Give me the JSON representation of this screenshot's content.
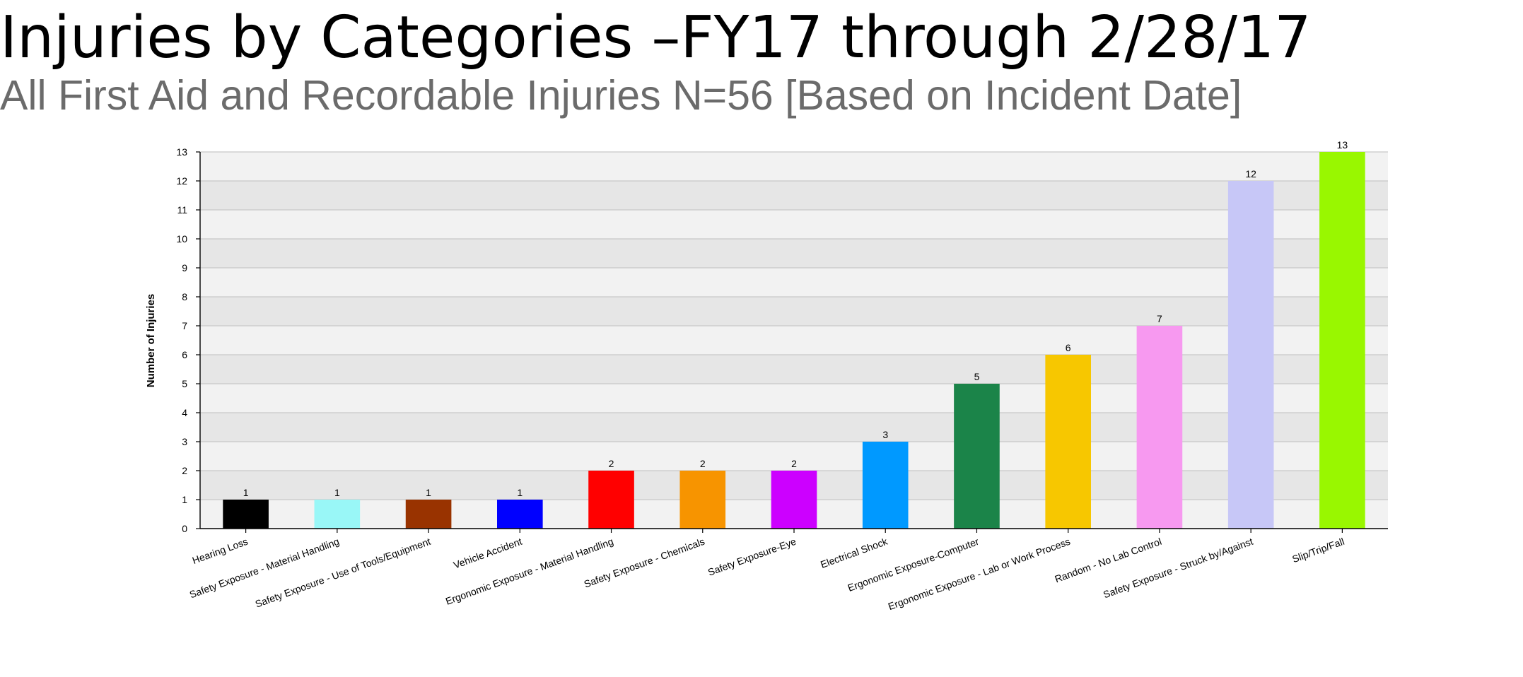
{
  "chart_data": {
    "type": "bar",
    "title": "Injuries by Categories –FY17 through 2/28/17",
    "subtitle": "All First Aid and Recordable Injuries N=56 [Based on Incident Date]",
    "xlabel": "",
    "ylabel": "Number of Injuries",
    "ylim": [
      0,
      13
    ],
    "yticks": [
      0,
      1,
      2,
      3,
      4,
      5,
      6,
      7,
      8,
      9,
      10,
      11,
      12,
      13
    ],
    "grid": true,
    "legend": "none",
    "categories": [
      "Hearing Loss",
      "Safety Exposure - Material Handling",
      "Safety Exposure - Use of Tools/Equipment",
      "Vehicle Accident",
      "Ergonomic Exposure - Material Handling",
      "Safety Exposure - Chemicals",
      "Safety Exposure-Eye",
      "Electrical Shock",
      "Ergonomic Exposure-Computer",
      "Ergonomic Exposure - Lab or Work Process",
      "Random - No Lab Control",
      "Safety Exposure - Struck by/Against",
      "Slip/Trip/Fall"
    ],
    "values": [
      1,
      1,
      1,
      1,
      2,
      2,
      2,
      3,
      5,
      6,
      7,
      12,
      13
    ],
    "colors": [
      "#000000",
      "#99f7f7",
      "#993300",
      "#0000ff",
      "#ff0000",
      "#f79400",
      "#cc00ff",
      "#0099ff",
      "#1b8449",
      "#f7c700",
      "#f799f0",
      "#c7c7f7",
      "#99f700"
    ],
    "band_colors": [
      "#f2f2f2",
      "#e6e6e6"
    ],
    "grid_color": "#c8c8c8",
    "axis_color": "#000000"
  }
}
